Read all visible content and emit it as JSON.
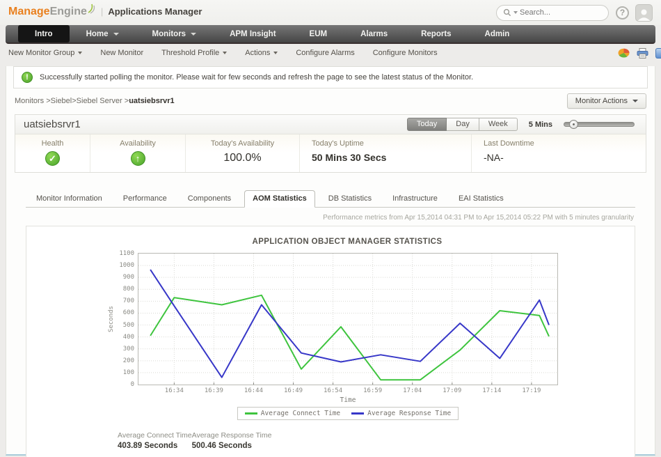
{
  "topbar": {
    "logo_manage": "Manage",
    "logo_engine": "Engine",
    "logo_separator": "|",
    "product_name": "Applications Manager",
    "search_placeholder": "Search...",
    "help_glyph": "?"
  },
  "nav": {
    "items": [
      {
        "label": "Intro",
        "active": true,
        "dropdown": false
      },
      {
        "label": "Home",
        "active": false,
        "dropdown": true
      },
      {
        "label": "Monitors",
        "active": false,
        "dropdown": true
      },
      {
        "label": "APM Insight",
        "active": false,
        "dropdown": false
      },
      {
        "label": "EUM",
        "active": false,
        "dropdown": false
      },
      {
        "label": "Alarms",
        "active": false,
        "dropdown": false
      },
      {
        "label": "Reports",
        "active": false,
        "dropdown": false
      },
      {
        "label": "Admin",
        "active": false,
        "dropdown": false
      }
    ]
  },
  "subnav": {
    "items": [
      {
        "label": "New Monitor Group",
        "dropdown": true
      },
      {
        "label": "New Monitor",
        "dropdown": false
      },
      {
        "label": "Threshold Profile",
        "dropdown": true
      },
      {
        "label": "Actions",
        "dropdown": true
      },
      {
        "label": "Configure Alarms",
        "dropdown": false
      },
      {
        "label": "Configure Monitors",
        "dropdown": false
      }
    ]
  },
  "alert": {
    "glyph": "!",
    "message": "Successfully started polling the monitor. Please wait for few seconds and refresh the page to see the latest status of the Monitor."
  },
  "breadcrumb": {
    "prefix": "Monitors >Siebel>Siebel Server >",
    "current": "uatsiebsrvr1"
  },
  "monitor_actions_label": "Monitor Actions",
  "monitor": {
    "title": "uatsiebsrvr1",
    "periods": [
      {
        "label": "Today",
        "active": true
      },
      {
        "label": "Day",
        "active": false
      },
      {
        "label": "Week",
        "active": false
      }
    ],
    "interval_label": "5 Mins",
    "stats": [
      {
        "label": "Health",
        "icon": "health-check",
        "glyph": "✓"
      },
      {
        "label": "Availability",
        "icon": "availability-up",
        "glyph": "↑"
      },
      {
        "label": "Today's Availability",
        "value": "100.0%",
        "size": "large",
        "align": "center"
      },
      {
        "label": "Today's Uptime",
        "value": "50 Mins 30 Secs",
        "size": "bold",
        "align": "left"
      },
      {
        "label": "Last Downtime",
        "value": "-NA-",
        "size": "normal",
        "align": "left"
      }
    ]
  },
  "tabs": {
    "items": [
      "Monitor Information",
      "Performance",
      "Components",
      "AOM Statistics",
      "DB Statistics",
      "Infrastructure",
      "EAI Statistics"
    ],
    "active": "AOM Statistics"
  },
  "metrics_note": "Performance metrics from Apr 15,2014 04:31 PM to Apr 15,2014 05:22 PM with 5 minutes granularity",
  "chart_data": {
    "type": "line",
    "title": "APPLICATION OBJECT MANAGER STATISTICS",
    "xlabel": "Time",
    "ylabel": "Seconds",
    "ylim": [
      0,
      1100
    ],
    "ytick_step": 100,
    "grid": true,
    "legend_position": "bottom",
    "categories": [
      "16:34",
      "16:39",
      "16:44",
      "16:49",
      "16:54",
      "16:59",
      "17:04",
      "17:09",
      "17:14",
      "17:19"
    ],
    "x_range_ticks": [
      -0.9,
      9.65
    ],
    "series": [
      {
        "name": "Average Connect Time",
        "color": "#3ec43e",
        "x": [
          -0.6,
          0,
          1.2,
          2.2,
          3.2,
          4.2,
          5.2,
          6.2,
          7.2,
          8.2,
          9.2,
          9.44
        ],
        "values": [
          410,
          730,
          670,
          750,
          130,
          485,
          40,
          40,
          290,
          620,
          580,
          405
        ]
      },
      {
        "name": "Average Response Time",
        "color": "#3737c8",
        "x": [
          -0.6,
          0,
          1.2,
          2.2,
          3.2,
          4.2,
          5.2,
          6.2,
          7.2,
          8.2,
          9.2,
          9.44
        ],
        "values": [
          965,
          660,
          60,
          670,
          265,
          190,
          250,
          195,
          515,
          220,
          710,
          500
        ]
      }
    ],
    "summary": [
      {
        "label": "Average Connect Time",
        "value": "403.89 Seconds"
      },
      {
        "label": "Average Response Time",
        "value": "500.46 Seconds"
      }
    ]
  },
  "colors": {
    "brand_orange": "#e9801f",
    "status_green": "#4ca22b",
    "connect_line": "#3ec43e",
    "response_line": "#3737c8",
    "nav_dark": "#454545"
  }
}
